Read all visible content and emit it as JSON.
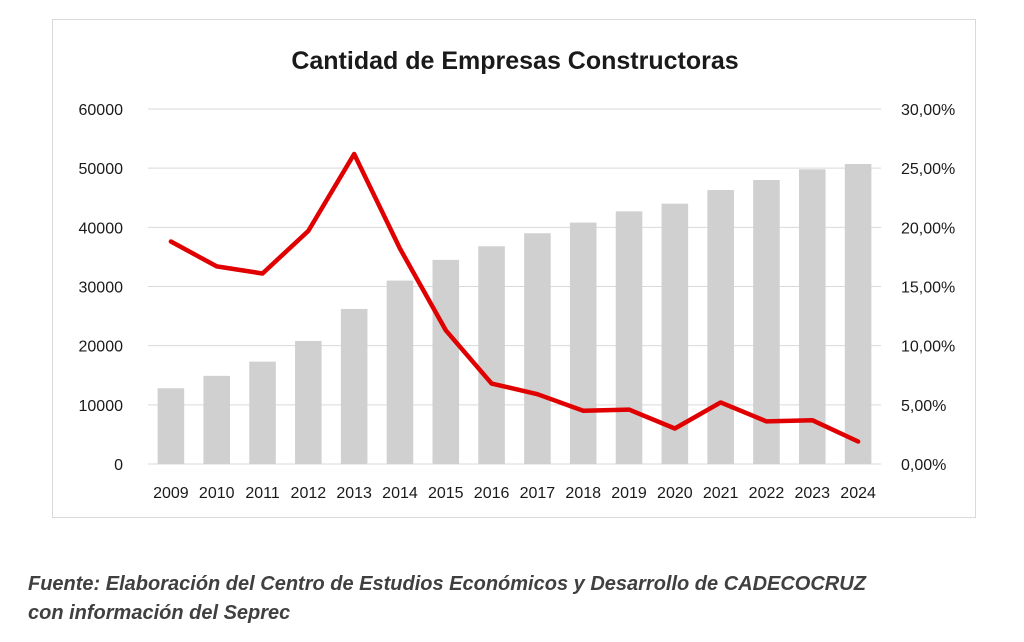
{
  "chart_data": {
    "type": "bar",
    "title": "Cantidad de Empresas Constructoras",
    "categories": [
      "2009",
      "2010",
      "2011",
      "2012",
      "2013",
      "2014",
      "2015",
      "2016",
      "2017",
      "2018",
      "2019",
      "2020",
      "2021",
      "2022",
      "2023",
      "2024"
    ],
    "series": [
      {
        "type": "bar",
        "axis": "left",
        "color": "#d0d0d0",
        "values": [
          12800,
          14900,
          17300,
          20800,
          26200,
          31000,
          34500,
          36800,
          39000,
          40800,
          42700,
          44000,
          46300,
          48000,
          49800,
          50700
        ]
      },
      {
        "type": "line",
        "axis": "right",
        "color": "#e00000",
        "values": [
          18.8,
          16.7,
          16.1,
          19.7,
          26.2,
          18.2,
          11.3,
          6.8,
          5.9,
          4.5,
          4.6,
          3.0,
          5.2,
          3.6,
          3.7,
          1.9
        ]
      }
    ],
    "y_left": {
      "min": 0,
      "max": 60000,
      "ticks": [
        "0",
        "10000",
        "20000",
        "30000",
        "40000",
        "50000",
        "60000"
      ]
    },
    "y_right": {
      "min": 0,
      "max": 30,
      "ticks": [
        "0,00%",
        "5,00%",
        "10,00%",
        "15,00%",
        "20,00%",
        "25,00%",
        "30,00%"
      ]
    },
    "grid": true,
    "legend": "none"
  },
  "source_note": [
    "Fuente: Elaboración del Centro de Estudios Económicos y Desarrollo de CADECOCRUZ",
    "con información del Seprec"
  ]
}
